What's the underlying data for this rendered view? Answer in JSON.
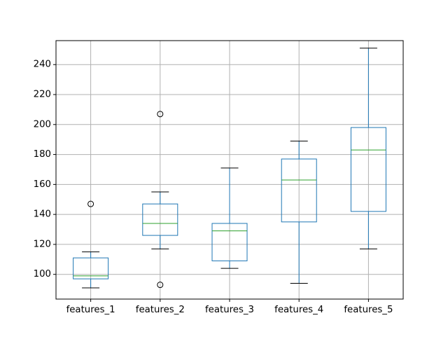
{
  "chart_data": {
    "type": "box",
    "categories": [
      "features_1",
      "features_2",
      "features_3",
      "features_4",
      "features_5"
    ],
    "boxes": [
      {
        "name": "features_1",
        "whisker_low": 91,
        "q1": 97,
        "median": 99,
        "q3": 111,
        "whisker_high": 115,
        "outliers": [
          147
        ]
      },
      {
        "name": "features_2",
        "whisker_low": 117,
        "q1": 126,
        "median": 134,
        "q3": 147,
        "whisker_high": 155,
        "outliers": [
          207,
          93
        ]
      },
      {
        "name": "features_3",
        "whisker_low": 104,
        "q1": 109,
        "median": 129,
        "q3": 134,
        "whisker_high": 171,
        "outliers": []
      },
      {
        "name": "features_4",
        "whisker_low": 94,
        "q1": 135,
        "median": 163,
        "q3": 177,
        "whisker_high": 189,
        "outliers": []
      },
      {
        "name": "features_5",
        "whisker_low": 117,
        "q1": 142,
        "median": 183,
        "q3": 198,
        "whisker_high": 251,
        "outliers": []
      }
    ],
    "ylim": [
      83.5,
      256
    ],
    "yticks": [
      100,
      120,
      140,
      160,
      180,
      200,
      220,
      240
    ],
    "grid": true,
    "title": "",
    "xlabel": "",
    "ylabel": "",
    "colors": {
      "box": "#1f77b4",
      "median": "#2ca02c",
      "whisker_cap": "#000000",
      "outlier": "#000000",
      "grid": "#b0b0b0",
      "axes": "#000000"
    }
  }
}
